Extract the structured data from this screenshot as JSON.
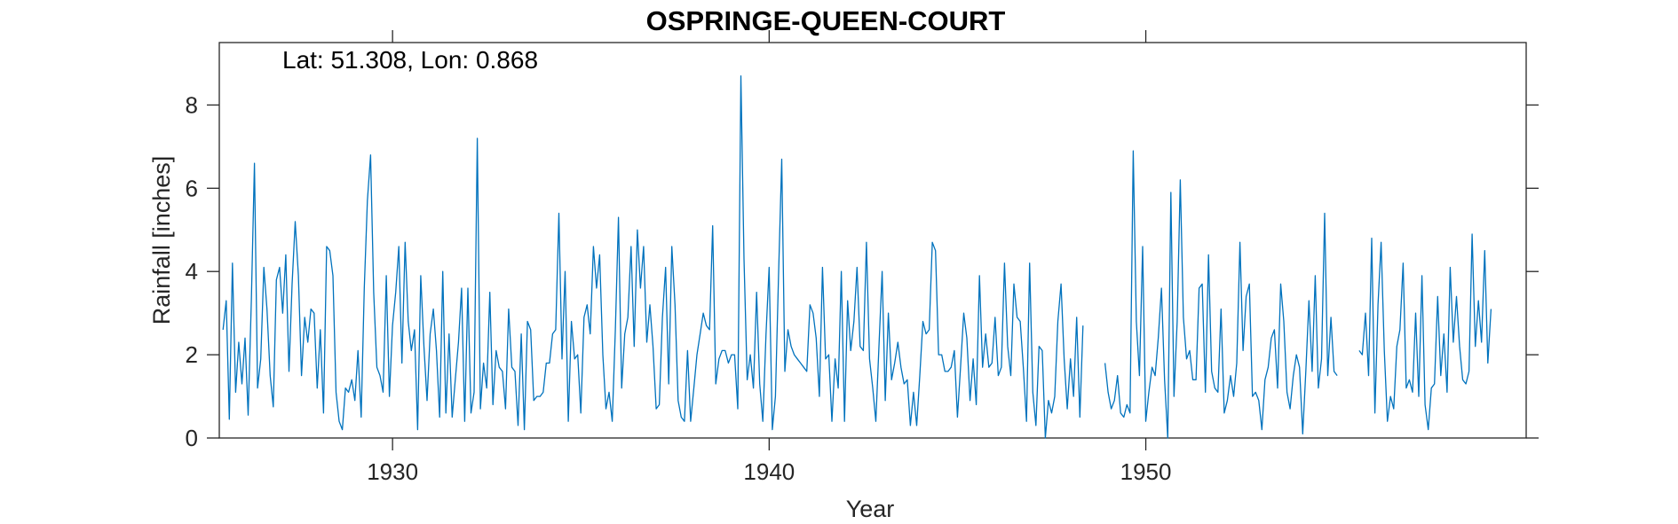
{
  "chart_data": {
    "type": "line",
    "title": "OSPRINGE-QUEEN-COURT",
    "xlabel": "Year",
    "ylabel": "Rainfall [inches]",
    "annotation": "Lat: 51.308, Lon: 0.868",
    "xlim": [
      1925.4,
      1960.1
    ],
    "ylim": [
      0,
      9.5
    ],
    "xticks": [
      1930,
      1940,
      1950
    ],
    "yticks": [
      0,
      2,
      4,
      6,
      8
    ],
    "grid": false,
    "line_color": "#0072BD",
    "x_start": 1925.5,
    "x_step": 0.08333,
    "series": [
      {
        "values": [
          2.6,
          3.3,
          0.45,
          4.2,
          1.1,
          2.3,
          1.3,
          2.4,
          0.55,
          3.3,
          6.6,
          1.2,
          1.9,
          4.1,
          3.1,
          1.5,
          0.75,
          3.8,
          4.1,
          3.0,
          4.4,
          1.6,
          3.7,
          5.2,
          3.9,
          1.5,
          2.9,
          2.3,
          3.1,
          3.0,
          1.2,
          2.6,
          0.6,
          4.6,
          4.5,
          3.9,
          1.1,
          0.4,
          0.2,
          1.2,
          1.1,
          1.4,
          0.9,
          2.1,
          0.5,
          3.6,
          5.7,
          6.8,
          3.5,
          1.7,
          1.5,
          1.1,
          3.9,
          1.0,
          2.7,
          3.5,
          4.6,
          1.8,
          4.7,
          2.8,
          2.1,
          2.6,
          0.2,
          3.9,
          2.2,
          0.9,
          2.5,
          3.1,
          2.1,
          0.5,
          4.0,
          0.6,
          2.5,
          0.5,
          1.4,
          2.3,
          3.6,
          0.4,
          3.6,
          0.6,
          1.1,
          7.2,
          0.7,
          1.8,
          1.2,
          3.5,
          0.8,
          2.1,
          1.7,
          1.6,
          0.7,
          3.1,
          1.7,
          1.6,
          0.3,
          2.5,
          0.2,
          2.8,
          2.6,
          0.9,
          1.0,
          1.0,
          1.1,
          1.8,
          1.8,
          2.5,
          2.6,
          5.4,
          1.9,
          4.0,
          0.4,
          2.8,
          1.9,
          2.0,
          0.6,
          2.9,
          3.2,
          2.5,
          4.6,
          3.6,
          4.4,
          2.0,
          0.7,
          1.1,
          0.4,
          2.6,
          5.3,
          1.2,
          2.5,
          2.9,
          4.6,
          2.2,
          5.0,
          3.6,
          4.6,
          2.3,
          3.2,
          2.2,
          0.7,
          0.8,
          2.9,
          4.1,
          1.3,
          4.6,
          3.2,
          0.9,
          0.5,
          0.4,
          2.1,
          0.4,
          1.2,
          2.0,
          2.5,
          3.0,
          2.7,
          2.6,
          5.1,
          1.3,
          1.9,
          2.1,
          2.1,
          1.8,
          2.0,
          2.0,
          0.7,
          8.7,
          4.3,
          1.4,
          2.0,
          1.2,
          3.5,
          1.3,
          0.4,
          2.5,
          4.1,
          0.2,
          1.0,
          3.9,
          6.7,
          1.6,
          2.6,
          2.2,
          2.0,
          1.9,
          1.8,
          1.7,
          1.6,
          3.2,
          3.0,
          2.4,
          1.0,
          4.1,
          1.9,
          2.0,
          0.4,
          1.9,
          1.2,
          4.0,
          0.4,
          3.3,
          2.1,
          2.8,
          4.1,
          2.2,
          2.1,
          4.7,
          1.9,
          1.2,
          0.4,
          2.2,
          4.0,
          0.9,
          3.0,
          1.4,
          1.8,
          2.3,
          1.7,
          1.3,
          1.4,
          0.3,
          1.1,
          0.3,
          1.5,
          2.8,
          2.5,
          2.6,
          4.7,
          4.5,
          2.0,
          2.0,
          1.6,
          1.6,
          1.7,
          2.1,
          0.5,
          1.7,
          3.0,
          2.4,
          0.9,
          1.9,
          0.8,
          3.9,
          1.7,
          2.5,
          1.7,
          1.8,
          2.9,
          1.5,
          1.7,
          4.2,
          2.2,
          1.5,
          3.7,
          2.9,
          2.8,
          1.7,
          0.4,
          4.2,
          1.1,
          0.3,
          2.2,
          2.1,
          0.0,
          0.9,
          0.6,
          1.0,
          2.8,
          3.7,
          1.9,
          0.7,
          1.9,
          1.0,
          2.9,
          0.5,
          2.7,
          null,
          null,
          null,
          null,
          null,
          null,
          1.8,
          1.1,
          0.7,
          0.9,
          1.5,
          0.6,
          0.5,
          0.8,
          0.6,
          6.9,
          2.8,
          1.5,
          4.6,
          0.4,
          1.1,
          1.7,
          1.5,
          2.4,
          3.6,
          1.4,
          0.0,
          5.9,
          1.0,
          2.8,
          6.2,
          2.9,
          1.9,
          2.1,
          1.4,
          1.4,
          3.6,
          3.7,
          1.1,
          4.4,
          1.6,
          1.2,
          1.1,
          3.1,
          0.6,
          0.9,
          1.5,
          1.0,
          1.8,
          4.7,
          2.1,
          3.4,
          3.7,
          1.0,
          1.1,
          0.9,
          0.2,
          1.4,
          1.7,
          2.4,
          2.6,
          1.2,
          3.7,
          2.8,
          1.1,
          0.7,
          1.5,
          2.0,
          1.7,
          0.1,
          1.6,
          3.3,
          1.6,
          3.9,
          1.2,
          1.9,
          5.4,
          1.5,
          2.9,
          1.6,
          1.5,
          null,
          null,
          null,
          null,
          null,
          null,
          2.1,
          2.0,
          3.0,
          1.5,
          4.8,
          0.6,
          3.2,
          4.7,
          2.1,
          0.4,
          1.0,
          0.7,
          2.2,
          2.6,
          4.2,
          1.2,
          1.4,
          1.1,
          3.0,
          1.0,
          3.9,
          0.8,
          0.2,
          1.2,
          1.3,
          3.4,
          1.5,
          2.5,
          1.1,
          4.1,
          2.3,
          3.4,
          2.2,
          1.4,
          1.3,
          1.6,
          4.9,
          2.2,
          3.3,
          2.3,
          4.5,
          1.8,
          3.1
        ]
      }
    ]
  }
}
